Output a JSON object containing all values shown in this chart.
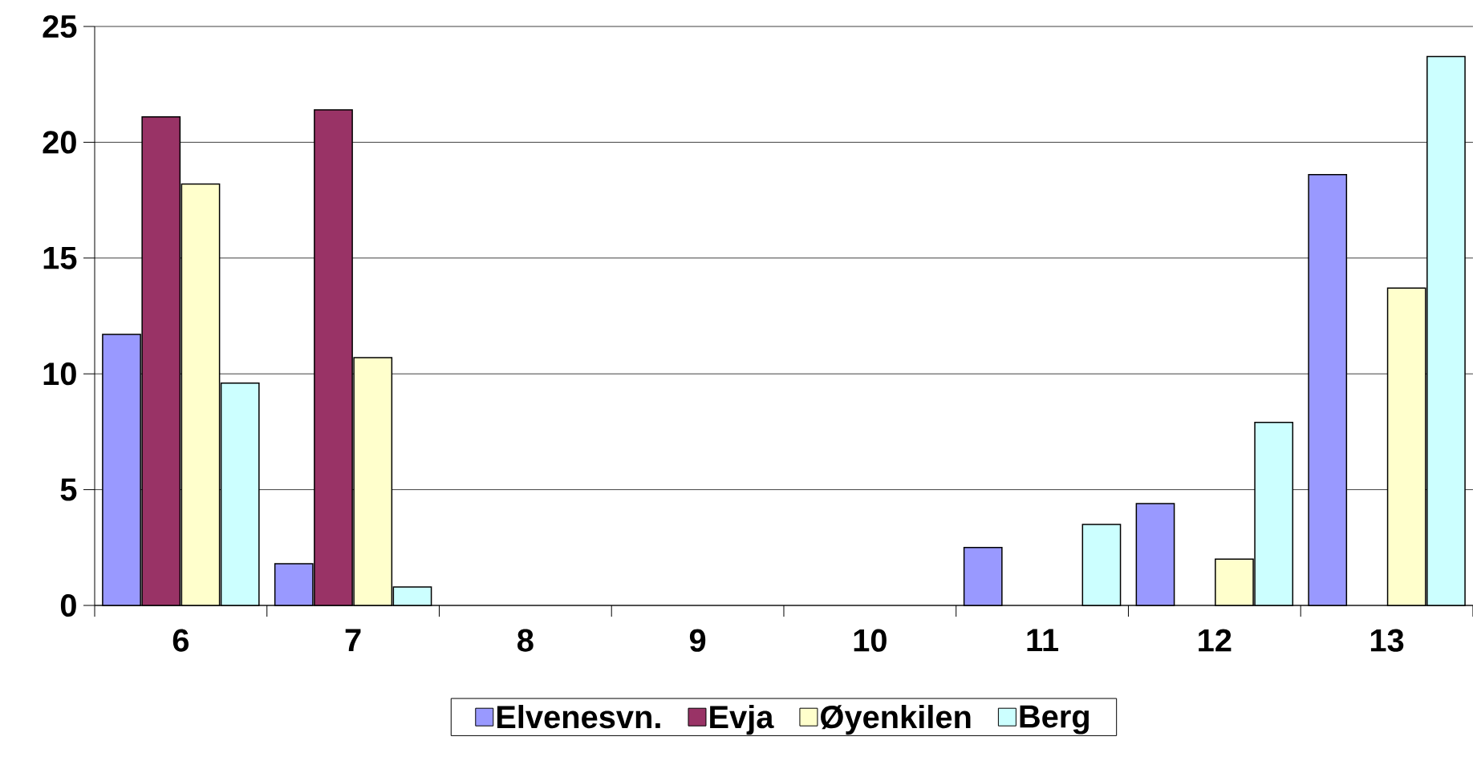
{
  "chart_data": {
    "type": "bar",
    "categories": [
      "6",
      "7",
      "8",
      "9",
      "10",
      "11",
      "12",
      "13"
    ],
    "series": [
      {
        "name": "Elvenesvn.",
        "color": "#9999ff",
        "values": [
          11.7,
          1.8,
          null,
          null,
          null,
          2.5,
          4.4,
          18.6
        ]
      },
      {
        "name": "Evja",
        "color": "#993366",
        "values": [
          21.1,
          21.4,
          null,
          null,
          null,
          null,
          null,
          null
        ]
      },
      {
        "name": "Øyenkilen",
        "color": "#ffffcc",
        "values": [
          18.2,
          10.7,
          null,
          null,
          null,
          null,
          2.0,
          13.7
        ]
      },
      {
        "name": "Berg",
        "color": "#ccffff",
        "values": [
          9.6,
          0.8,
          null,
          null,
          null,
          3.5,
          7.9,
          23.7
        ]
      }
    ],
    "ylim": [
      0,
      25
    ],
    "yticks": [
      0,
      5,
      10,
      15,
      20,
      25
    ],
    "grid": "y",
    "legend": "bottom"
  }
}
